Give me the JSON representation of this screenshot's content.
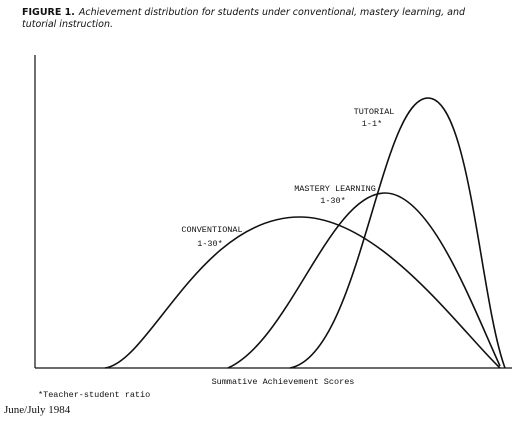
{
  "caption": {
    "label": "FIGURE 1.",
    "text": "Achievement distribution for students under conventional, mastery learning, and tutorial instruction."
  },
  "curves": [
    {
      "name": "CONVENTIONAL",
      "ratio": "1-30*"
    },
    {
      "name": "MASTERY LEARNING",
      "ratio": "1-30*"
    },
    {
      "name": "TUTORIAL",
      "ratio": "1-1*"
    }
  ],
  "x_axis_label": "Summative Achievement Scores",
  "footnote": "*Teacher-student ratio",
  "issue": "June/July 1984"
}
